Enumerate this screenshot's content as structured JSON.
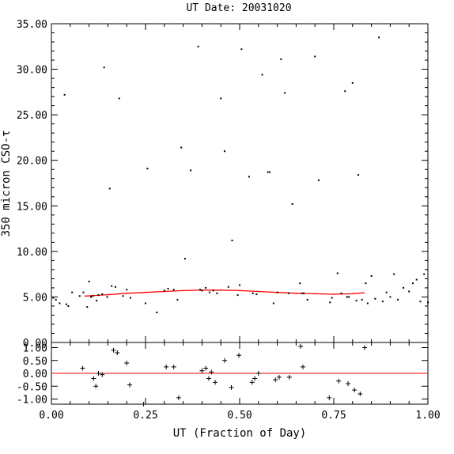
{
  "chart_data": [
    {
      "type": "scatter",
      "title": "UT Date: 20031020",
      "xlabel": "",
      "ylabel": "350 micron CSO-τ",
      "xlim": [
        0.0,
        1.0
      ],
      "ylim": [
        0.0,
        35.0
      ],
      "yticks": [
        0.0,
        5.0,
        10.0,
        15.0,
        20.0,
        25.0,
        30.0,
        35.0
      ],
      "ytick_labels": [
        "0.00",
        "5.00",
        "10.00",
        "15.00",
        "20.00",
        "25.00",
        "30.00",
        "35.00"
      ],
      "grid": false,
      "point_color": "#000000",
      "series": [
        {
          "type": "scatter",
          "x": [
            0.005,
            0.012,
            0.022,
            0.035,
            0.04,
            0.045,
            0.055,
            0.075,
            0.085,
            0.095,
            0.1,
            0.105,
            0.11,
            0.12,
            0.125,
            0.135,
            0.14,
            0.148,
            0.155,
            0.16,
            0.17,
            0.18,
            0.19,
            0.2,
            0.21,
            0.25,
            0.255,
            0.28,
            0.3,
            0.31,
            0.325,
            0.335,
            0.345,
            0.355,
            0.37,
            0.39,
            0.395,
            0.4,
            0.41,
            0.42,
            0.43,
            0.44,
            0.45,
            0.46,
            0.47,
            0.48,
            0.495,
            0.5,
            0.505,
            0.525,
            0.535,
            0.545,
            0.56,
            0.575,
            0.58,
            0.59,
            0.6,
            0.61,
            0.62,
            0.63,
            0.64,
            0.66,
            0.665,
            0.67,
            0.68,
            0.7,
            0.71,
            0.74,
            0.745,
            0.76,
            0.77,
            0.78,
            0.785,
            0.79,
            0.8,
            0.81,
            0.815,
            0.825,
            0.835,
            0.84,
            0.85,
            0.86,
            0.87,
            0.88,
            0.89,
            0.9,
            0.91,
            0.92,
            0.935,
            0.95,
            0.96,
            0.97,
            0.98,
            0.99,
            1.0
          ],
          "y": [
            4.9,
            4.7,
            4.3,
            27.2,
            4.2,
            4.0,
            5.5,
            5.1,
            5.5,
            3.9,
            6.7,
            5.0,
            5.1,
            4.6,
            5.2,
            5.3,
            30.2,
            5.0,
            16.9,
            6.2,
            6.1,
            26.8,
            5.1,
            5.8,
            4.9,
            4.3,
            19.1,
            3.3,
            5.7,
            5.9,
            5.8,
            4.7,
            21.4,
            9.2,
            18.9,
            32.5,
            5.8,
            5.7,
            6.0,
            5.5,
            5.7,
            5.4,
            26.8,
            21.0,
            6.1,
            11.2,
            5.2,
            6.3,
            32.2,
            18.2,
            5.4,
            5.3,
            29.4,
            18.7,
            18.7,
            4.3,
            5.5,
            31.1,
            27.4,
            5.4,
            15.2,
            6.5,
            5.4,
            5.4,
            4.7,
            31.4,
            17.8,
            4.4,
            4.9,
            7.6,
            5.4,
            27.6,
            5.0,
            5.0,
            28.5,
            4.6,
            18.4,
            4.7,
            6.5,
            4.3,
            7.3,
            4.8,
            33.5,
            4.5,
            5.5,
            5.0,
            7.5,
            4.7,
            6.0,
            5.6,
            6.5,
            6.9,
            4.5,
            7.5,
            4.4
          ]
        },
        {
          "type": "line",
          "color": "#ff0000",
          "x": [
            0.09,
            0.15,
            0.2,
            0.25,
            0.3,
            0.35,
            0.4,
            0.45,
            0.5,
            0.55,
            0.6,
            0.65,
            0.7,
            0.75,
            0.8,
            0.83
          ],
          "y": [
            5.1,
            5.25,
            5.4,
            5.5,
            5.6,
            5.7,
            5.75,
            5.75,
            5.7,
            5.6,
            5.5,
            5.4,
            5.35,
            5.3,
            5.35,
            5.45
          ]
        }
      ]
    },
    {
      "type": "scatter",
      "title": "",
      "xlabel": "UT (Fraction of Day)",
      "ylabel": "",
      "xlim": [
        0.0,
        1.0
      ],
      "ylim": [
        -1.2,
        1.2
      ],
      "xticks": [
        0.0,
        0.25,
        0.5,
        0.75,
        1.0
      ],
      "xtick_labels": [
        "0.00",
        "0.25",
        "0.50",
        "0.75",
        "1.00"
      ],
      "yticks": [
        -1.0,
        -0.5,
        0.0,
        0.5,
        1.0
      ],
      "ytick_labels": [
        "-1.00",
        "-0.50",
        "0.00",
        "0.50",
        "1.00"
      ],
      "grid": false,
      "zero_line_color": "#ff0000",
      "point_color": "#000000",
      "series": [
        {
          "type": "scatter",
          "x": [
            0.083,
            0.112,
            0.118,
            0.125,
            0.135,
            0.165,
            0.175,
            0.2,
            0.208,
            0.245,
            0.305,
            0.325,
            0.338,
            0.4,
            0.41,
            0.418,
            0.425,
            0.435,
            0.46,
            0.478,
            0.498,
            0.533,
            0.54,
            0.55,
            0.595,
            0.605,
            0.632,
            0.662,
            0.668,
            0.738,
            0.763,
            0.788,
            0.805,
            0.82,
            0.832
          ],
          "y": [
            0.2,
            -0.2,
            -0.5,
            0.0,
            -0.05,
            0.9,
            0.8,
            0.4,
            -0.45,
            -1.2,
            0.25,
            0.25,
            -0.95,
            0.1,
            0.2,
            -0.2,
            0.05,
            -0.35,
            0.5,
            -0.55,
            0.7,
            -0.35,
            -0.2,
            0.0,
            -0.25,
            -0.15,
            -0.15,
            1.05,
            0.25,
            -0.95,
            -0.3,
            -0.4,
            -0.65,
            -0.8,
            1.0
          ]
        }
      ]
    }
  ]
}
